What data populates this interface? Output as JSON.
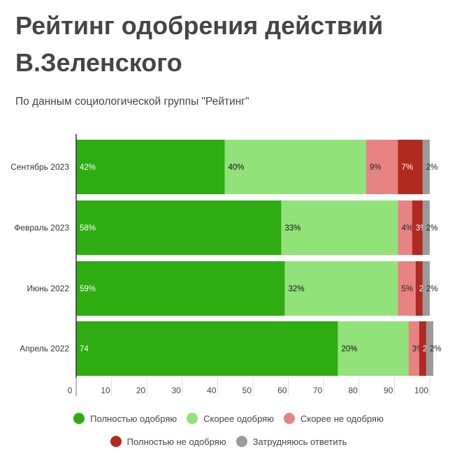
{
  "title": "Рейтинг одобрения действий В.Зеленского",
  "subtitle": "По данным социологической группы \"Рейтинг\"",
  "chart_data": {
    "type": "bar",
    "orientation": "horizontal",
    "stacked": true,
    "categories": [
      "Сентябрь 2023",
      "Февраль 2023",
      "Июнь 2022",
      "Апрель 2022"
    ],
    "series": [
      {
        "name": "Полностью одобряю",
        "color": "#2eac12",
        "label_color": "#ffffff",
        "values": [
          42,
          58,
          59,
          74
        ],
        "labels": [
          "42%",
          "58%",
          "59%",
          "74"
        ]
      },
      {
        "name": "Скорее одобряю",
        "color": "#92e27a",
        "label_color": "#111111",
        "values": [
          40,
          33,
          32,
          20
        ],
        "labels": [
          "40%",
          "33%",
          "32%",
          "20%"
        ]
      },
      {
        "name": "Скорее не одобряю",
        "color": "#e88383",
        "label_color": "#222222",
        "values": [
          9,
          4,
          5,
          3
        ],
        "labels": [
          "9%",
          "4%",
          "5%",
          "3%"
        ]
      },
      {
        "name": "Полностью не одобряю",
        "color": "#b02a20",
        "label_color": "#ffffff",
        "values": [
          7,
          3,
          2,
          2
        ],
        "labels": [
          "7%",
          "3%",
          "2%",
          "2%"
        ]
      },
      {
        "name": "Затрудняюсь ответить",
        "color": "#9a9a9a",
        "label_color": "#222222",
        "values": [
          2,
          2,
          2,
          2
        ],
        "labels": [
          "2%",
          "2%",
          "2%",
          "2%"
        ]
      }
    ],
    "xlim": [
      0,
      100
    ],
    "xticks": [
      0,
      10,
      20,
      30,
      40,
      50,
      60,
      70,
      80,
      90,
      100
    ],
    "grid": false,
    "legend_position": "bottom"
  }
}
